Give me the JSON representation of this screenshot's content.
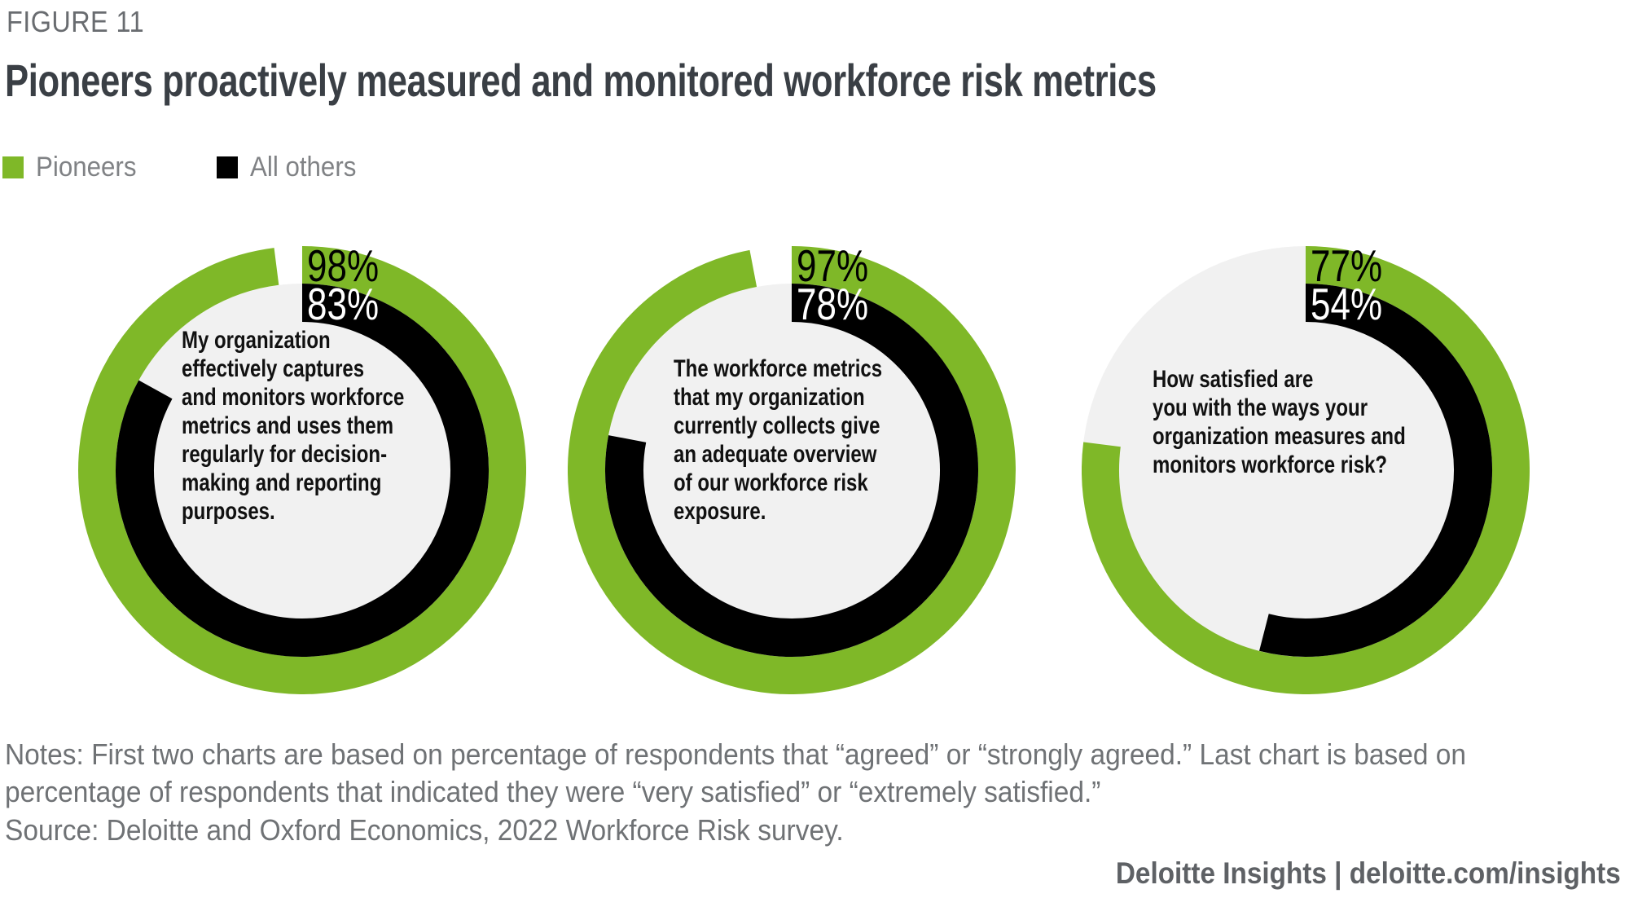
{
  "figure_label": "FIGURE 11",
  "title": "Pioneers proactively measured and monitored workforce risk metrics",
  "legend": {
    "items": [
      {
        "label": "Pioneers",
        "color": "#7FB828"
      },
      {
        "label": "All others",
        "color": "#000000"
      }
    ]
  },
  "colors": {
    "pioneers_green": "#7FB828",
    "all_others_black": "#000000",
    "track_gray": "#F1F1F1",
    "title_text": "#3A3F45",
    "muted_text": "#6F7275"
  },
  "chart_data": {
    "type": "donut",
    "unit": "%",
    "start_angle": "12 o'clock",
    "direction": "clockwise",
    "series_names": [
      "Pioneers",
      "All others"
    ],
    "charts": [
      {
        "question": "My organization\neffectively captures\nand monitors workforce\nmetrics and uses them\nregularly for decision-\nmaking and reporting\npurposes.",
        "pioneers_value": 98,
        "all_others_value": 83,
        "pioneers_label": "98%",
        "all_others_label": "83%"
      },
      {
        "question": "The workforce metrics\nthat my organization\ncurrently collects give\nan adequate overview\nof our workforce risk\nexposure.",
        "pioneers_value": 97,
        "all_others_value": 78,
        "pioneers_label": "97%",
        "all_others_label": "78%"
      },
      {
        "question": "How satisfied are\nyou with the ways your\norganization measures and\nmonitors workforce risk?",
        "pioneers_value": 77,
        "all_others_value": 54,
        "pioneers_label": "77%",
        "all_others_label": "54%"
      }
    ]
  },
  "notes": "Notes: First two charts are based on percentage of respondents that “agreed” or “strongly agreed.” Last chart is based on percentage of respondents that indicated they were “very satisfied” or “extremely satisfied.”",
  "source": "Source: Deloitte and Oxford Economics, 2022 Workforce Risk survey.",
  "footer": "Deloitte Insights | deloitte.com/insights"
}
